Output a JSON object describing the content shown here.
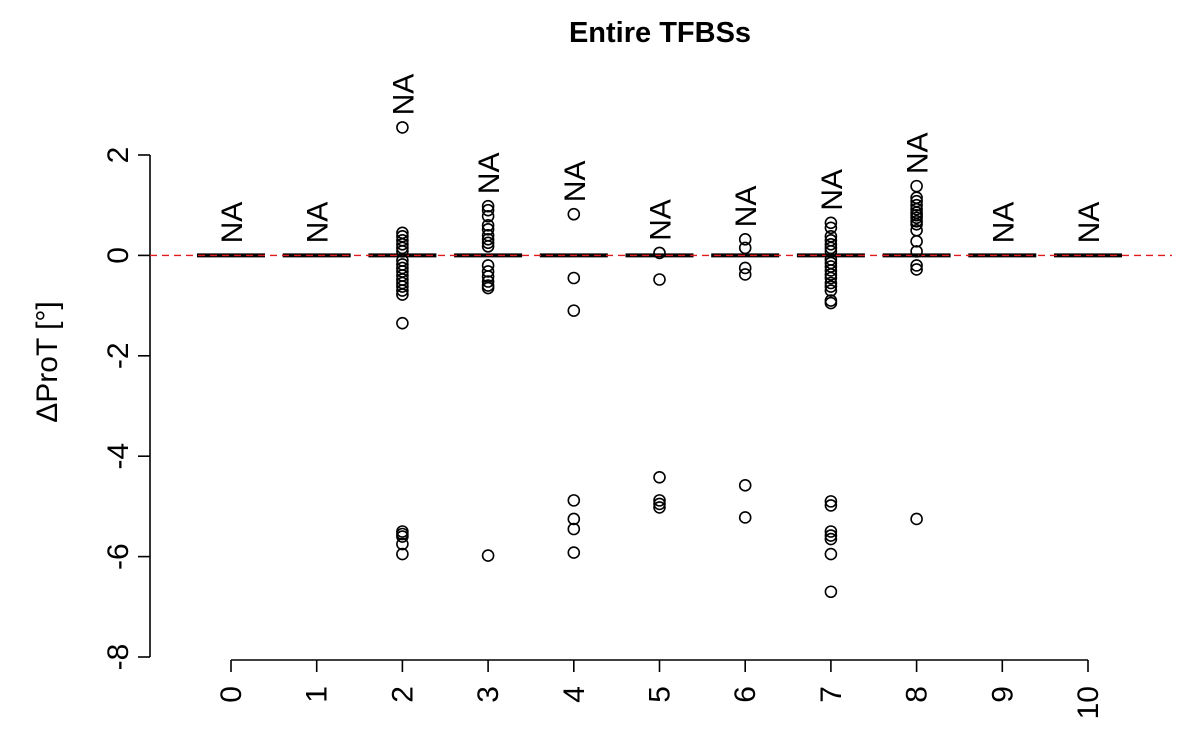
{
  "chart_data": {
    "type": "box",
    "title": "Entire TFBSs",
    "xlabel": "",
    "ylabel": "ΔProT [°]",
    "ylim": [
      -8,
      2.5
    ],
    "y_ticks": [
      -8,
      -6,
      -4,
      -2,
      0,
      2
    ],
    "reference_line": {
      "y": 0,
      "color": "#e31a1c",
      "style": "dashed"
    },
    "groups": [
      {
        "category": "0",
        "median": 0,
        "na_label": "NA",
        "outliers": []
      },
      {
        "category": "1",
        "median": 0,
        "na_label": "NA",
        "outliers": []
      },
      {
        "category": "2",
        "median": 0,
        "na_label": "NA",
        "outliers": [
          2.55,
          0.45,
          0.38,
          0.3,
          0.22,
          0.15,
          0.08,
          -0.1,
          -0.18,
          -0.25,
          -0.32,
          -0.4,
          -0.48,
          -0.55,
          -0.62,
          -0.7,
          -0.78,
          -1.35,
          -5.5,
          -5.55,
          -5.6,
          -5.75,
          -5.95
        ]
      },
      {
        "category": "3",
        "median": 0,
        "na_label": "NA",
        "outliers": [
          0.98,
          0.9,
          0.78,
          0.6,
          0.52,
          0.4,
          0.32,
          0.25,
          0.18,
          -0.2,
          -0.32,
          -0.42,
          -0.52,
          -0.6,
          -0.65,
          -5.98
        ]
      },
      {
        "category": "4",
        "median": 0,
        "na_label": "NA",
        "outliers": [
          0.82,
          -0.45,
          -1.1,
          -4.88,
          -5.25,
          -5.45,
          -5.92
        ]
      },
      {
        "category": "5",
        "median": 0,
        "na_label": "NA",
        "outliers": [
          0.05,
          -0.48,
          -4.42,
          -4.88,
          -4.95,
          -5.02
        ]
      },
      {
        "category": "6",
        "median": 0,
        "na_label": "NA",
        "outliers": [
          0.32,
          0.15,
          -0.25,
          -0.38,
          -4.58,
          -5.22
        ]
      },
      {
        "category": "7",
        "median": 0,
        "na_label": "NA",
        "outliers": [
          0.65,
          0.55,
          0.38,
          0.3,
          0.22,
          0.15,
          0.08,
          -0.08,
          -0.15,
          -0.22,
          -0.3,
          -0.38,
          -0.45,
          -0.55,
          -0.62,
          -0.7,
          -0.9,
          -0.95,
          -4.9,
          -4.98,
          -5.5,
          -5.58,
          -5.65,
          -5.95,
          -6.7
        ]
      },
      {
        "category": "8",
        "median": 0,
        "na_label": "NA",
        "outliers": [
          1.38,
          1.15,
          1.08,
          1.0,
          0.92,
          0.85,
          0.8,
          0.75,
          0.68,
          0.62,
          0.5,
          0.28,
          0.08,
          -0.2,
          -0.28,
          -5.25
        ]
      },
      {
        "category": "9",
        "median": 0,
        "na_label": "NA",
        "outliers": []
      },
      {
        "category": "10",
        "median": 0,
        "na_label": "NA",
        "outliers": []
      }
    ]
  }
}
